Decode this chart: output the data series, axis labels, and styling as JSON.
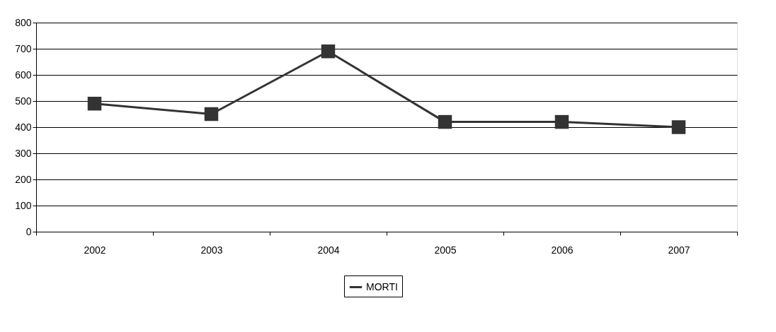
{
  "chart_data": {
    "type": "line",
    "categories": [
      "2002",
      "2003",
      "2004",
      "2005",
      "2006",
      "2007"
    ],
    "series": [
      {
        "name": "MORTI",
        "color": "#333333",
        "values": [
          490,
          450,
          690,
          420,
          420,
          400
        ]
      }
    ],
    "ylim": [
      0,
      800
    ],
    "yticks": [
      0,
      100,
      200,
      300,
      400,
      500,
      600,
      700,
      800
    ],
    "grid": "y",
    "legend": "bottom",
    "marker": "square",
    "line_style": "solid"
  }
}
